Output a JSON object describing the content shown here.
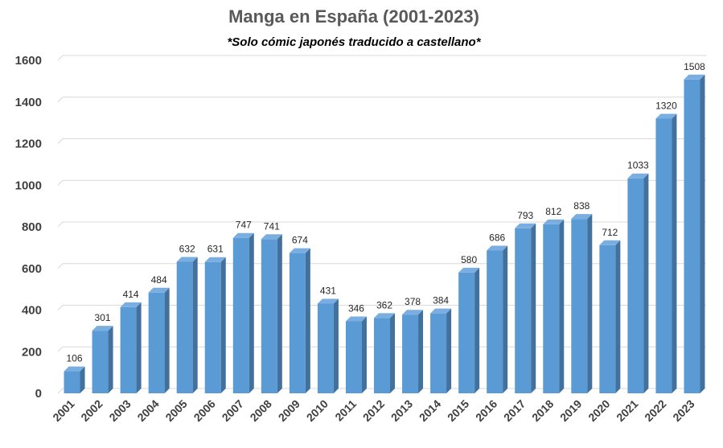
{
  "chart_data": {
    "type": "bar",
    "title": "Manga en España (2001-2023)",
    "subtitle": "*Solo cómic japonés traducido a castellano*",
    "xlabel": "",
    "ylabel": "",
    "categories": [
      "2001",
      "2002",
      "2003",
      "2004",
      "2005",
      "2006",
      "2007",
      "2008",
      "2009",
      "2010",
      "2011",
      "2012",
      "2013",
      "2014",
      "2015",
      "2016",
      "2017",
      "2018",
      "2019",
      "2020",
      "2021",
      "2022",
      "2023"
    ],
    "values": [
      106,
      301,
      414,
      484,
      632,
      631,
      747,
      741,
      674,
      431,
      346,
      362,
      378,
      384,
      580,
      686,
      793,
      812,
      838,
      712,
      1033,
      1320,
      1508
    ],
    "ylim": [
      0,
      1600
    ],
    "yticks": [
      0,
      200,
      400,
      600,
      800,
      1000,
      1200,
      1400,
      1600
    ],
    "grid": true,
    "legend": "none",
    "colors": {
      "bar_front": "#5b9bd5",
      "bar_side": "#41719c",
      "bar_top": "#7aaee0",
      "grid": "#d9d9d9",
      "title": "#595959"
    }
  }
}
